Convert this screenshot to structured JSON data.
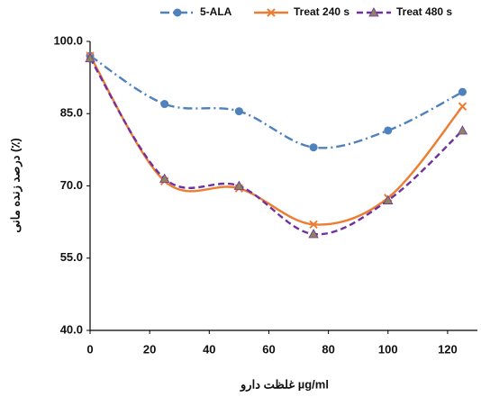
{
  "chart_data": {
    "type": "line",
    "smooth": true,
    "x_label": "غلظت دارو µg/ml",
    "y_label": "درصد زنده مانی (٪)",
    "x": [
      0,
      25,
      50,
      75,
      100,
      125
    ],
    "series": [
      {
        "name": "5-ALA",
        "color": "#4f81bd",
        "dash": "dashdot",
        "marker": "circle",
        "values": [
          97,
          87,
          85.5,
          78,
          81.5,
          89.5
        ]
      },
      {
        "name": "Treat 240 s",
        "color": "#ed7d31",
        "dash": "solid",
        "marker": "x",
        "values": [
          97,
          71,
          69.5,
          62,
          67.5,
          86.5
        ]
      },
      {
        "name": "Treat 480 s",
        "color": "#7030a0",
        "dash": "dashed",
        "marker": "triangle",
        "values": [
          96.5,
          71.5,
          70,
          60,
          67,
          81.5
        ]
      }
    ],
    "xlim": [
      0,
      130
    ],
    "xticks": [
      0,
      20,
      40,
      60,
      80,
      100,
      120
    ],
    "ylim": [
      40,
      100
    ],
    "yticks": [
      {
        "value": 40,
        "label": "40.0"
      },
      {
        "value": 55,
        "label": "55.0"
      },
      {
        "value": 70,
        "label": "70.0"
      },
      {
        "value": 85,
        "label": "85.0"
      },
      {
        "value": 100,
        "label": "100.0"
      }
    ],
    "legend": "top"
  }
}
